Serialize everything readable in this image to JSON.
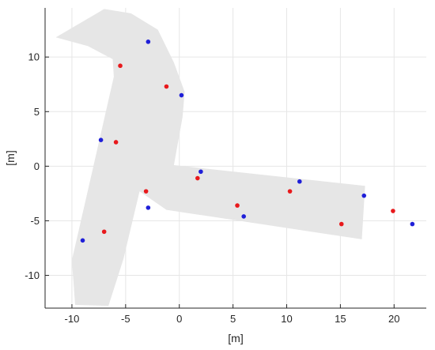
{
  "chart_data": {
    "type": "scatter",
    "title": "",
    "xlabel": "[m]",
    "ylabel": "[m]",
    "xlim": [
      -12.5,
      23
    ],
    "ylim": [
      -13,
      14.5
    ],
    "xticks": [
      -10,
      -5,
      0,
      5,
      10,
      15,
      20
    ],
    "yticks": [
      -10,
      -5,
      0,
      5,
      10
    ],
    "grid": true,
    "colors": {
      "series_a": "#e8191c",
      "series_b": "#1f1fd8",
      "region": "#e6e6e6",
      "grid": "#e6e6e6",
      "axis": "#262626"
    },
    "series": [
      {
        "color": "#e8191c",
        "points": [
          [
            -5.5,
            9.2
          ],
          [
            -1.2,
            7.3
          ],
          [
            -5.9,
            2.2
          ],
          [
            -3.1,
            -2.3
          ],
          [
            -7.0,
            -6.0
          ],
          [
            1.7,
            -1.1
          ],
          [
            5.4,
            -3.6
          ],
          [
            10.3,
            -2.3
          ],
          [
            15.1,
            -5.3
          ],
          [
            19.9,
            -4.1
          ]
        ]
      },
      {
        "color": "#1f1fd8",
        "points": [
          [
            -2.9,
            11.4
          ],
          [
            0.2,
            6.5
          ],
          [
            -7.3,
            2.4
          ],
          [
            -2.9,
            -3.8
          ],
          [
            -9.0,
            -6.8
          ],
          [
            2.0,
            -0.5
          ],
          [
            6.0,
            -4.6
          ],
          [
            11.2,
            -1.4
          ],
          [
            17.2,
            -2.7
          ],
          [
            21.7,
            -5.3
          ]
        ]
      }
    ],
    "region_outline": [
      [
        -11.5,
        11.8
      ],
      [
        -7.0,
        14.4
      ],
      [
        -4.5,
        14.0
      ],
      [
        -2.0,
        12.5
      ],
      [
        -0.5,
        9.5
      ],
      [
        0.5,
        6.8
      ],
      [
        0.3,
        4.5
      ],
      [
        -0.5,
        0.1
      ],
      [
        17.3,
        -1.8
      ],
      [
        17.0,
        -6.7
      ],
      [
        -1.2,
        -4.0
      ],
      [
        -3.7,
        -2.3
      ],
      [
        -5.2,
        -8.5
      ],
      [
        -6.6,
        -12.8
      ],
      [
        -9.7,
        -12.7
      ],
      [
        -10.0,
        -8.6
      ],
      [
        -8.0,
        0.0
      ],
      [
        -6.1,
        8.2
      ],
      [
        -6.2,
        9.8
      ],
      [
        -8.5,
        11.0
      ]
    ]
  }
}
